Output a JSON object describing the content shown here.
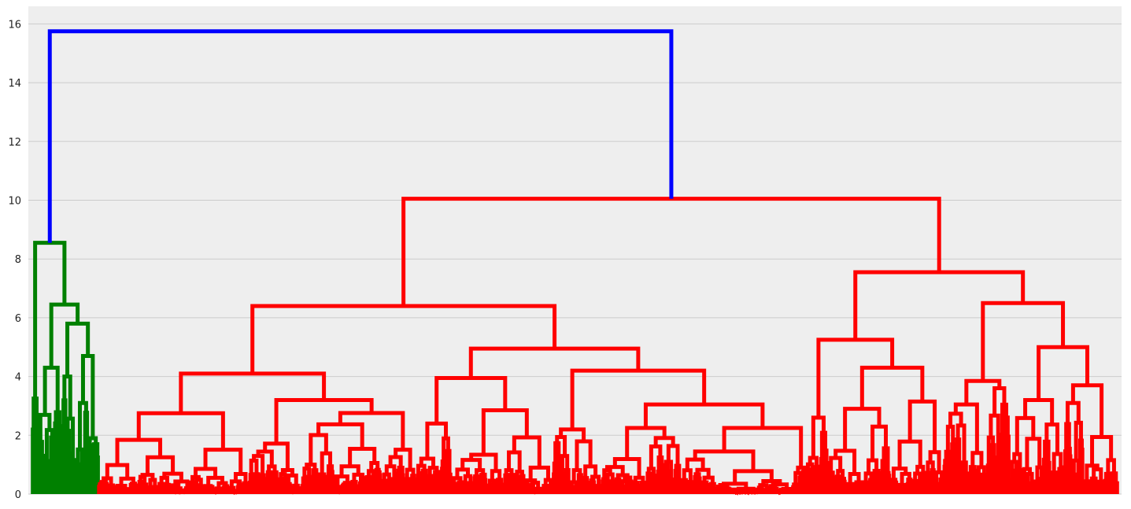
{
  "chart_data": {
    "type": "dendrogram",
    "title": "",
    "xlabel": "",
    "ylabel": "",
    "ylim": [
      0,
      16.6
    ],
    "y_ticks": [
      "0",
      "2",
      "4",
      "6",
      "8",
      "10",
      "12",
      "14",
      "16"
    ],
    "y_tick_values": [
      0,
      2,
      4,
      6,
      8,
      10,
      12,
      14,
      16
    ],
    "grid": "horizontal",
    "x_ticks_visible": false,
    "colors": {
      "root_link": "#0000ff",
      "cluster_1": "#008000",
      "cluster_2": "#ff0000",
      "background": "#eeeeee",
      "grid": "#cbcbcb"
    },
    "leaf_count": 1000,
    "clusters": [
      {
        "name": "cluster_1",
        "color": "#008000",
        "leaf_range": [
          0,
          61
        ],
        "merge_height": 8.55
      },
      {
        "name": "cluster_2",
        "color": "#ff0000",
        "leaf_range": [
          61,
          1000
        ],
        "merge_height": 10.05
      }
    ],
    "root_merge_height": 15.75,
    "major_merges": [
      {
        "cluster": "cluster_2",
        "height": 10.05,
        "children_heights": [
          6.4,
          7.55
        ]
      },
      {
        "cluster": "cluster_2",
        "height": 7.55,
        "children_heights": [
          5.25,
          6.5
        ]
      },
      {
        "cluster": "cluster_2",
        "height": 6.4,
        "children_heights": [
          4.1,
          4.95
        ]
      },
      {
        "cluster": "cluster_2",
        "height": 6.5,
        "children_heights": [
          3.85,
          5.0
        ]
      },
      {
        "cluster": "cluster_2",
        "height": 5.0,
        "children_heights": [
          3.2,
          3.7
        ]
      },
      {
        "cluster": "cluster_2",
        "height": 5.25,
        "children_heights": [
          2.6,
          4.3
        ]
      },
      {
        "cluster": "cluster_2",
        "height": 4.95,
        "children_heights": [
          3.95,
          4.2
        ]
      },
      {
        "cluster": "cluster_2",
        "height": 4.3,
        "children_heights": [
          2.9,
          3.15
        ]
      },
      {
        "cluster": "cluster_2",
        "height": 4.2,
        "children_heights": [
          2.2,
          3.05
        ]
      },
      {
        "cluster": "cluster_2",
        "height": 4.1,
        "children_heights": [
          2.75,
          3.2
        ]
      },
      {
        "cluster": "cluster_2",
        "height": 3.95,
        "children_heights": [
          2.4,
          2.85
        ]
      },
      {
        "cluster": "cluster_2",
        "height": 3.05,
        "children_heights": [
          2.25,
          1.45
        ]
      },
      {
        "cluster": "cluster_2",
        "height": 2.25,
        "children_heights": [
          1.1,
          2.0
        ]
      },
      {
        "cluster": "cluster_1",
        "height": 8.55,
        "children_heights": [
          3.25,
          6.45
        ]
      },
      {
        "cluster": "cluster_1",
        "height": 6.45,
        "children_heights": [
          4.3,
          5.8
        ]
      },
      {
        "cluster": "cluster_1",
        "height": 5.8,
        "children_heights": [
          4.0,
          4.7
        ]
      },
      {
        "cluster": "cluster_1",
        "height": 4.7,
        "children_heights": [
          3.1,
          1.9
        ]
      }
    ]
  }
}
